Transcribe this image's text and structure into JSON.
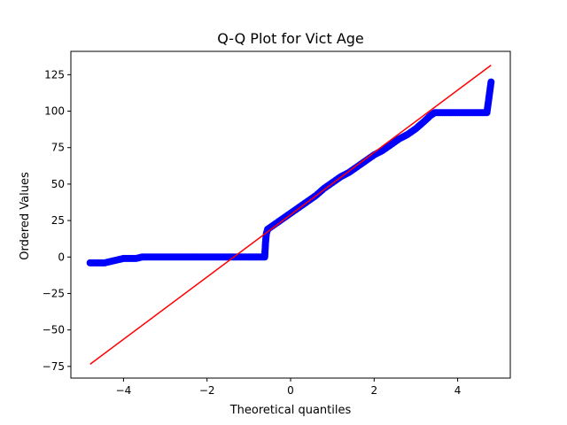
{
  "chart_data": {
    "type": "scatter",
    "title": "Q-Q Plot for Vict Age",
    "xlabel": "Theoretical quantiles",
    "ylabel": "Ordered Values",
    "xlim": [
      -5.26,
      5.26
    ],
    "ylim": [
      -83,
      141
    ],
    "xticks": [
      -4,
      -2,
      0,
      2,
      4
    ],
    "yticks": [
      -75,
      -50,
      -25,
      0,
      25,
      50,
      75,
      100,
      125
    ],
    "grid": false,
    "colors": {
      "points": "#0000ff",
      "fit_line": "#ff0000"
    },
    "series": [
      {
        "kind": "points",
        "x": [
          -4.8,
          -4.6,
          -4.45,
          -4.3,
          -4.15,
          -4.0,
          -3.85,
          -3.7,
          -3.55,
          -3.0,
          -2.0,
          -1.0,
          -0.7,
          -0.62,
          -0.6,
          -0.58,
          -0.55,
          -0.5,
          -0.4,
          -0.3,
          -0.2,
          -0.1,
          0.0,
          0.2,
          0.4,
          0.6,
          0.8,
          1.0,
          1.2,
          1.4,
          1.6,
          1.8,
          2.0,
          2.2,
          2.4,
          2.6,
          2.8,
          3.0,
          3.2,
          3.35,
          3.45,
          3.6,
          4.0,
          4.4,
          4.7,
          4.8
        ],
        "y": [
          -4,
          -4,
          -4,
          -3,
          -2,
          -1,
          -1,
          -1,
          0,
          0,
          0,
          0,
          0,
          0,
          10,
          16,
          19,
          20,
          22,
          24,
          26,
          28,
          30,
          34,
          38,
          42,
          47,
          51,
          55,
          58,
          62,
          66,
          70,
          73,
          77,
          81,
          84,
          88,
          93,
          97,
          99,
          99,
          99,
          99,
          99,
          120
        ]
      },
      {
        "kind": "line",
        "x": [
          -4.8,
          4.8
        ],
        "y": [
          -73.5,
          131.5
        ]
      }
    ]
  }
}
